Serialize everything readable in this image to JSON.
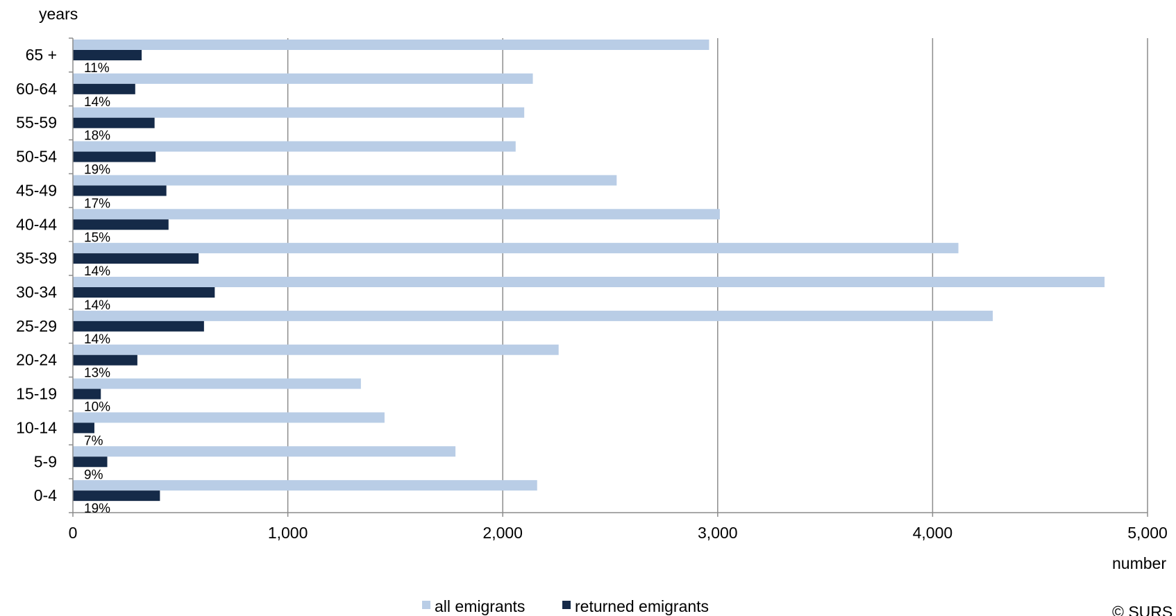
{
  "chart_data": {
    "type": "bar",
    "orientation": "horizontal",
    "y_axis_title": "years",
    "x_axis_title": "number",
    "xlim": [
      0,
      5000
    ],
    "x_ticks": [
      "0",
      "1,000",
      "2,000",
      "3,000",
      "4,000",
      "5,000"
    ],
    "x_tick_values": [
      0,
      1000,
      2000,
      3000,
      4000,
      5000
    ],
    "grid": "vertical",
    "legend_position": "bottom",
    "categories": [
      "65 +",
      "60-64",
      "55-59",
      "50-54",
      "45-49",
      "40-44",
      "35-39",
      "30-34",
      "25-29",
      "20-24",
      "15-19",
      "10-14",
      "5-9",
      "0-4"
    ],
    "series": [
      {
        "name": "all emigrants",
        "color": "#b9cde6",
        "values": [
          2960,
          2140,
          2100,
          2060,
          2530,
          3010,
          4120,
          4800,
          4280,
          2260,
          1340,
          1450,
          1780,
          2160
        ]
      },
      {
        "name": "returned emigrants",
        "color": "#152a48",
        "values": [
          320,
          290,
          380,
          385,
          435,
          445,
          585,
          660,
          610,
          300,
          130,
          100,
          160,
          405
        ]
      }
    ],
    "data_labels": [
      "11%",
      "14%",
      "18%",
      "19%",
      "17%",
      "15%",
      "14%",
      "14%",
      "14%",
      "13%",
      "10%",
      "7%",
      "9%",
      "19%"
    ],
    "copyright": "© SURS"
  }
}
